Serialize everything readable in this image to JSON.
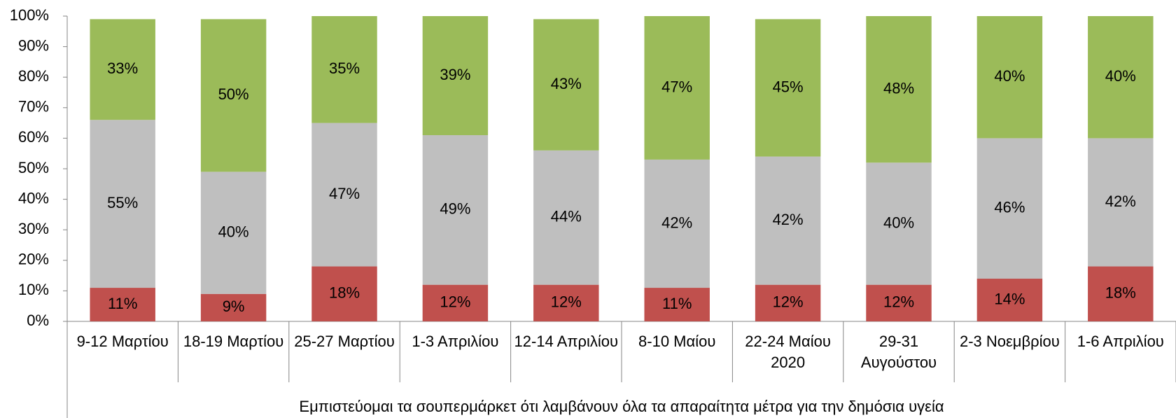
{
  "chart_data": {
    "type": "stacked_bar",
    "x_label": "Εμπιστεύομαι τα σουπερμάρκετ ότι λαμβάνουν όλα τα απαραίτητα μέτρα για την δημόσια υγεία",
    "categories": [
      "9-12 Μαρτίου",
      "18-19 Μαρτίου",
      "25-27 Μαρτίου",
      "1-3 Απριλίου",
      "12-14 Απριλίου",
      "8-10 Μαίου",
      "22-24 Μαίου 2020",
      "29-31 Αυγούστου",
      "2-3 Νοεμβρίου",
      "1-6 Απριλίου"
    ],
    "series": [
      {
        "color": "#c0504d",
        "values": [
          11,
          9,
          18,
          12,
          12,
          11,
          12,
          12,
          14,
          18
        ],
        "value_labels": [
          "11%",
          "9%",
          "18%",
          "12%",
          "12%",
          "11%",
          "12%",
          "12%",
          "14%",
          "18%"
        ]
      },
      {
        "color": "#bfbfbf",
        "values": [
          55,
          40,
          47,
          49,
          44,
          42,
          42,
          40,
          46,
          42
        ],
        "value_labels": [
          "55%",
          "40%",
          "47%",
          "49%",
          "44%",
          "42%",
          "42%",
          "40%",
          "46%",
          "42%"
        ]
      },
      {
        "color": "#9bbb59",
        "values": [
          33,
          50,
          35,
          39,
          43,
          47,
          45,
          48,
          40,
          40
        ],
        "value_labels": [
          "33%",
          "50%",
          "35%",
          "39%",
          "43%",
          "47%",
          "45%",
          "48%",
          "40%",
          "40%"
        ]
      }
    ],
    "ylim": [
      0,
      100
    ],
    "yticks": [
      {
        "value": 0,
        "label": "0%"
      },
      {
        "value": 10,
        "label": "10%"
      },
      {
        "value": 20,
        "label": "20%"
      },
      {
        "value": 30,
        "label": "30%"
      },
      {
        "value": 40,
        "label": "40%"
      },
      {
        "value": 50,
        "label": "50%"
      },
      {
        "value": 60,
        "label": "60%"
      },
      {
        "value": 70,
        "label": "70%"
      },
      {
        "value": 80,
        "label": "80%"
      },
      {
        "value": 90,
        "label": "90%"
      },
      {
        "value": 100,
        "label": "100%"
      }
    ],
    "grid": false
  }
}
